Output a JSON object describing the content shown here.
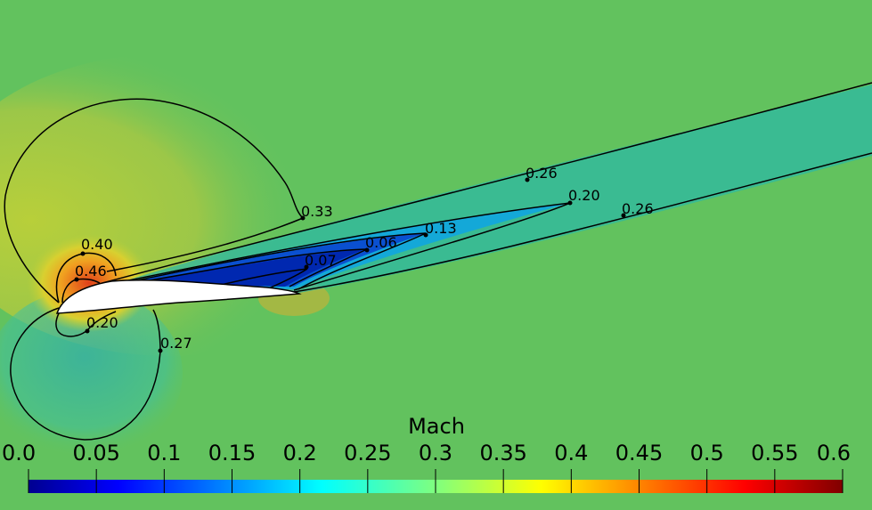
{
  "chart_data": {
    "type": "heatmap",
    "colorbar": {
      "title": "Mach",
      "range": [
        0.0,
        0.6
      ],
      "ticks": [
        "0.0",
        "0.05",
        "0.1",
        "0.15",
        "0.2",
        "0.25",
        "0.3",
        "0.35",
        "0.4",
        "0.45",
        "0.5",
        "0.55",
        "0.6"
      ]
    },
    "contour_labels": [
      {
        "text": "0.26",
        "value": 0.26
      },
      {
        "text": "0.20",
        "value": 0.2
      },
      {
        "text": "0.26",
        "value": 0.26
      },
      {
        "text": "0.33",
        "value": 0.33
      },
      {
        "text": "0.13",
        "value": 0.13
      },
      {
        "text": "0.06",
        "value": 0.06
      },
      {
        "text": "0.07",
        "value": 0.07
      },
      {
        "text": "0.40",
        "value": 0.4
      },
      {
        "text": "0.46",
        "value": 0.46
      },
      {
        "text": "0.20",
        "value": 0.2
      },
      {
        "text": "0.27",
        "value": 0.27
      }
    ],
    "colors": {
      "background": "#62c25e",
      "colormap": [
        "#00008f",
        "#0000ff",
        "#00ffff",
        "#7fff7f",
        "#ffff00",
        "#ff0000",
        "#800000"
      ]
    }
  }
}
